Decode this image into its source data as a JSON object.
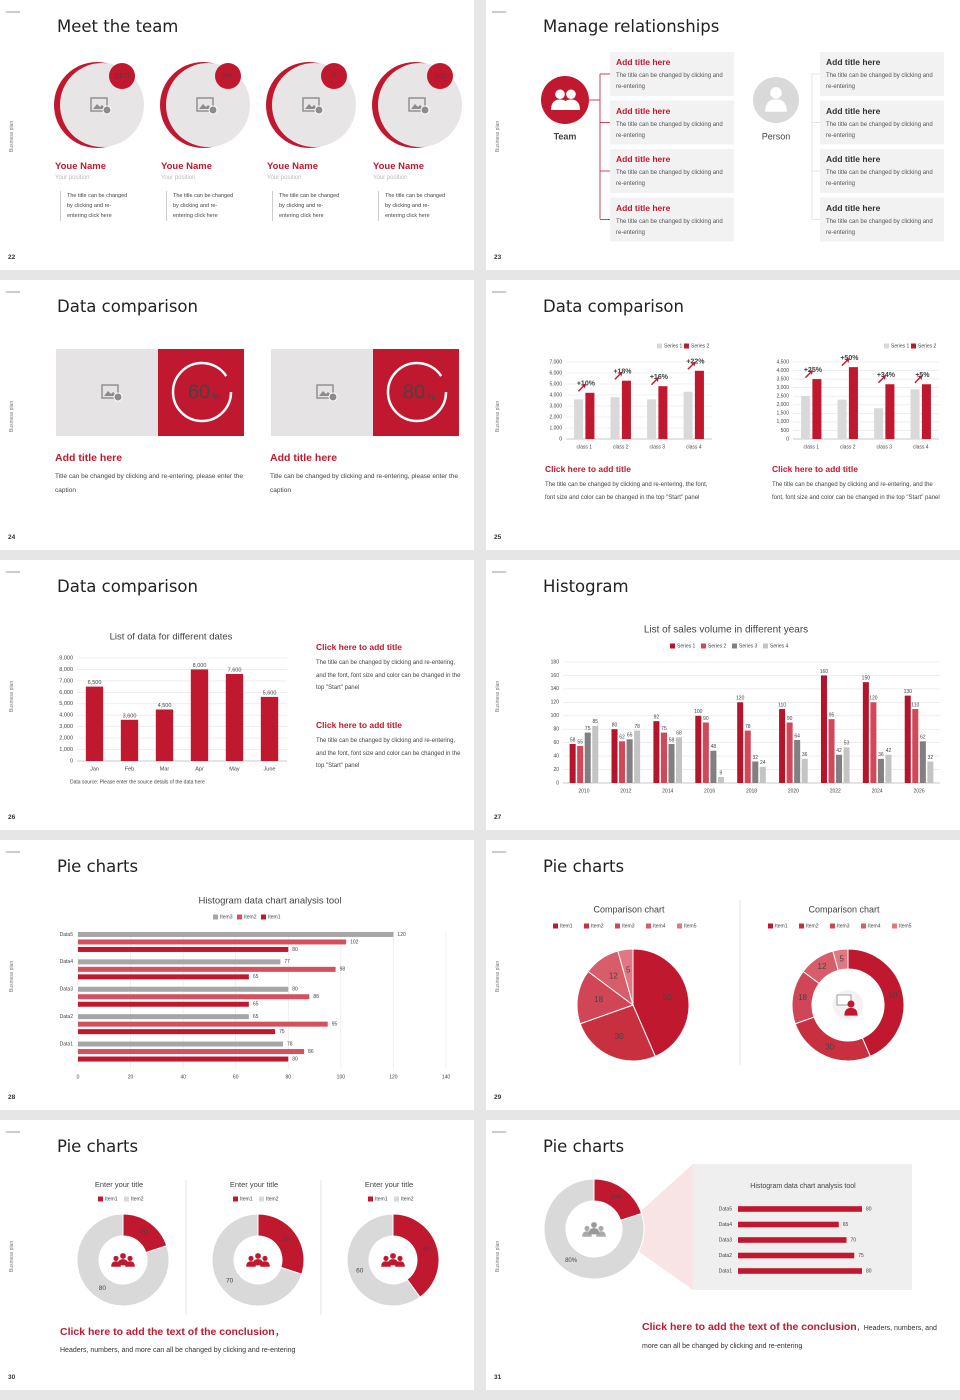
{
  "side_label": "Business plan",
  "slides": [
    {
      "number": 22,
      "title": "Meet the team",
      "members": [
        {
          "badge": "CEO",
          "name": "Youe Name",
          "position": "Your position",
          "text": "The title can be changed by clicking and re-entering click here"
        },
        {
          "badge": "PR",
          "name": "Youe Name",
          "position": "Your position",
          "text": "The title can be changed by clicking and re-entering click here"
        },
        {
          "badge": "IT",
          "name": "Youe Name",
          "position": "Your position",
          "text": "The title can be changed by clicking and re-entering click here"
        },
        {
          "badge": "GD",
          "name": "Youe Name",
          "position": "Your position",
          "text": "The title can be changed by clicking and re-entering click here"
        }
      ]
    },
    {
      "number": 23,
      "title": "Manage relationships",
      "team": {
        "label": "Team",
        "boxes": [
          {
            "title": "Add title here",
            "text": "The title can be changed by clicking and re-entering"
          },
          {
            "title": "Add title here",
            "text": "The title can be changed by clicking and re-entering"
          },
          {
            "title": "Add title here",
            "text": "The title can be changed by clicking and re-entering"
          },
          {
            "title": "Add title here",
            "text": "The title can be changed by clicking and re-entering"
          }
        ]
      },
      "person": {
        "label": "Person",
        "boxes": [
          {
            "title": "Add title here",
            "text": "The title can be changed by clicking and re-entering"
          },
          {
            "title": "Add title here",
            "text": "The title can be changed by clicking and re-entering"
          },
          {
            "title": "Add title here",
            "text": "The title can be changed by clicking and re-entering"
          },
          {
            "title": "Add title here",
            "text": "The title can be changed by clicking and re-entering"
          }
        ]
      }
    },
    {
      "number": 24,
      "title": "Data comparison",
      "panels": [
        {
          "percent": 60,
          "unit": "%",
          "title": "Add title here",
          "text": "Title can be changed by clicking and re-entering, please enter the caption"
        },
        {
          "percent": 80,
          "unit": "%",
          "title": "Add title here",
          "text": "Title can be changed by clicking and re-entering, please enter the caption"
        }
      ]
    },
    {
      "number": 25,
      "title": "Data comparison",
      "charts": [
        {
          "type": "bar",
          "categories": [
            "class 1",
            "class 2",
            "class 3",
            "class 4"
          ],
          "series": [
            {
              "name": "Series 1",
              "color": "#d9d9d9",
              "values": [
                3600,
                3800,
                3600,
                4300
              ]
            },
            {
              "name": "Series 2",
              "color": "#c0182f",
              "values": [
                4200,
                5300,
                4800,
                6200
              ]
            }
          ],
          "annotations": [
            "+10%",
            "+18%",
            "+16%",
            "+22%"
          ],
          "ylim": [
            0,
            7000
          ],
          "yticks": [
            0,
            {
              "value": 1000,
              "label": "1,000"
            },
            {
              "value": 2000,
              "label": "2,000"
            },
            {
              "value": 3000,
              "label": "3,000"
            },
            {
              "value": 4000,
              "label": "4,000"
            },
            {
              "value": 5000,
              "label": "5,000"
            },
            {
              "value": 6000,
              "label": "6,000"
            },
            {
              "value": 7000,
              "label": "7,000"
            }
          ],
          "grid": true,
          "legend": "top-right",
          "caption_title": "Click here to add title",
          "caption": "The title can be changed by clicking and re-entering, the font, font size and color can be changed in the top \"Start\" panel"
        },
        {
          "type": "bar",
          "categories": [
            "class 1",
            "class 2",
            "class 3",
            "class 4"
          ],
          "series": [
            {
              "name": "Series 1",
              "color": "#d9d9d9",
              "values": [
                2500,
                2300,
                1800,
                2900
              ]
            },
            {
              "name": "Series 2",
              "color": "#c0182f",
              "values": [
                3500,
                4200,
                3200,
                3200
              ]
            }
          ],
          "annotations": [
            "+25%",
            "+50%",
            "+34%",
            "+5%"
          ],
          "ylim": [
            0,
            4500
          ],
          "yticks": [
            0,
            500,
            {
              "value": 1000,
              "label": "1,000"
            },
            {
              "value": 1500,
              "label": "1,500"
            },
            {
              "value": 2000,
              "label": "2,000"
            },
            {
              "value": 2500,
              "label": "2,500"
            },
            {
              "value": 3000,
              "label": "3,000"
            },
            {
              "value": 3500,
              "label": "3,500"
            },
            {
              "value": 4000,
              "label": "4,000"
            },
            {
              "value": 4500,
              "label": "4,500"
            }
          ],
          "grid": true,
          "legend": "top-right",
          "caption_title": "Click here to add title",
          "caption": "The title can be changed by clicking and re-entering, and the font, font size and color can be changed in the top \"Start\" panel"
        }
      ]
    },
    {
      "number": 26,
      "title": "Data comparison",
      "chart": {
        "type": "bar",
        "title": "List of data for different dates",
        "categories": [
          "Jan",
          "Feb",
          "Mar",
          "Apr",
          "May",
          "June"
        ],
        "values": [
          6500,
          3600,
          4500,
          8000,
          7600,
          5600
        ],
        "value_labels": [
          "6,500",
          "3,600",
          "4,500",
          "8,000",
          "7,600",
          "5,600"
        ],
        "color": "#c0182f",
        "ylim": [
          0,
          9000
        ],
        "yticks": [
          0,
          {
            "value": 1000,
            "label": "1,000"
          },
          {
            "value": 2000,
            "label": "2,000"
          },
          {
            "value": 3000,
            "label": "3,000"
          },
          {
            "value": 4000,
            "label": "4,000"
          },
          {
            "value": 5000,
            "label": "5,000"
          },
          {
            "value": 6000,
            "label": "6,000"
          },
          {
            "value": 7000,
            "label": "7,000"
          },
          {
            "value": 8000,
            "label": "8,000"
          },
          {
            "value": 9000,
            "label": "9,000"
          }
        ],
        "grid": true,
        "note": "Data source: Please enter the source details of the data here"
      },
      "notes": [
        {
          "title": "Click here to add title",
          "text": "The title can be changed by clicking and re-entering, and the font, font size and color can be changed in the top \"Start\" panel"
        },
        {
          "title": "Click here to add title",
          "text": "The title can be changed by clicking and re-entering, and the font, font size and color can be changed in the top \"Start\" panel"
        }
      ]
    },
    {
      "number": 27,
      "title": "Histogram",
      "chart": {
        "type": "bar",
        "title": "List of sales volume in different years",
        "categories": [
          "2010",
          "2012",
          "2014",
          "2016",
          "2018",
          "2020",
          "2022",
          "2024",
          "2026"
        ],
        "series": [
          {
            "name": "Series 1",
            "color": "#b5152b",
            "values": [
              58,
              80,
              92,
              100,
              120,
              110,
              160,
              150,
              130
            ]
          },
          {
            "name": "Series 2",
            "color": "#d0485a",
            "values": [
              55,
              62,
              75,
              90,
              78,
              90,
              95,
              120,
              110
            ]
          },
          {
            "name": "Series 3",
            "color": "#808080",
            "values": [
              75,
              65,
              58,
              48,
              32,
              64,
              42,
              36,
              62
            ]
          },
          {
            "name": "Series 4",
            "color": "#c4c4c4",
            "values": [
              85,
              78,
              68,
              9,
              24,
              36,
              53,
              42,
              32
            ]
          }
        ],
        "ylim": [
          0,
          180
        ],
        "yticks": [
          0,
          20,
          40,
          60,
          80,
          100,
          120,
          140,
          160,
          180
        ],
        "grid": true,
        "legend": "top"
      }
    },
    {
      "number": 28,
      "title": "Pie charts",
      "chart": {
        "type": "barh",
        "title": "Histogram data chart analysis tool",
        "categories": [
          "Data1",
          "Data2",
          "Data3",
          "Data4",
          "Data5"
        ],
        "series": [
          {
            "name": "Item3",
            "color": "#a6a6a6",
            "values": [
              78,
              65,
              80,
              77,
              120
            ]
          },
          {
            "name": "Item2",
            "color": "#d4505f",
            "values": [
              86,
              95,
              88,
              98,
              102
            ]
          },
          {
            "name": "Item1",
            "color": "#c0182f",
            "values": [
              80,
              75,
              65,
              65,
              80
            ]
          }
        ],
        "xlim": [
          0,
          140
        ],
        "xticks": [
          0,
          20,
          40,
          60,
          80,
          100,
          120,
          140
        ],
        "grid": true,
        "legend": "top"
      }
    },
    {
      "number": 29,
      "title": "Pie charts",
      "charts": [
        {
          "type": "pie",
          "title": "Comparison chart",
          "categories": [
            "Item1",
            "Item2",
            "Item3",
            "Item4",
            "Item5"
          ],
          "values": [
            50,
            30,
            18,
            12,
            5
          ],
          "colors": [
            "#c0182f",
            "#c8303f",
            "#d04656",
            "#d85d6b",
            "#e07782"
          ]
        },
        {
          "type": "donut",
          "title": "Comparison chart",
          "categories": [
            "Item1",
            "Item2",
            "Item3",
            "Item4",
            "Item5"
          ],
          "values": [
            50,
            30,
            18,
            12,
            5
          ],
          "colors": [
            "#c0182f",
            "#c8303f",
            "#d04656",
            "#d85d6b",
            "#e07782"
          ]
        }
      ]
    },
    {
      "number": 30,
      "title": "Pie charts",
      "charts": [
        {
          "type": "donut",
          "title": "Enter your title",
          "categories": [
            "Item1",
            "Item2"
          ],
          "values": [
            20,
            80
          ],
          "colors": [
            "#c0182f",
            "#d9d9d9"
          ]
        },
        {
          "type": "donut",
          "title": "Enter your title",
          "categories": [
            "Item1",
            "Item2"
          ],
          "values": [
            30,
            70
          ],
          "colors": [
            "#c0182f",
            "#d9d9d9"
          ]
        },
        {
          "type": "donut",
          "title": "Enter your title",
          "categories": [
            "Item1",
            "Item2"
          ],
          "values": [
            40,
            60
          ],
          "colors": [
            "#c0182f",
            "#d9d9d9"
          ]
        }
      ],
      "conclusion": {
        "title": "Click here to add the text of the conclusion",
        "separator": "，",
        "text": "Headers, numbers, and more can all be changed by clicking and re-entering"
      }
    },
    {
      "number": 31,
      "title": "Pie charts",
      "donut": {
        "type": "donut",
        "values": [
          20,
          80
        ],
        "value_labels": [
          "20%",
          "80%"
        ],
        "colors": [
          "#c0182f",
          "#d9d9d9"
        ]
      },
      "chart": {
        "type": "barh",
        "title": "Histogram data chart analysis tool",
        "categories": [
          "Data5",
          "Data4",
          "Data3",
          "Data2",
          "Data1"
        ],
        "values": [
          80,
          65,
          70,
          75,
          80
        ],
        "color": "#c0182f"
      },
      "conclusion": {
        "title": "Click here to add the text of the conclusion",
        "separator": "，",
        "text": "Headers, numbers, and more can all be changed by clicking and re-entering"
      }
    }
  ]
}
